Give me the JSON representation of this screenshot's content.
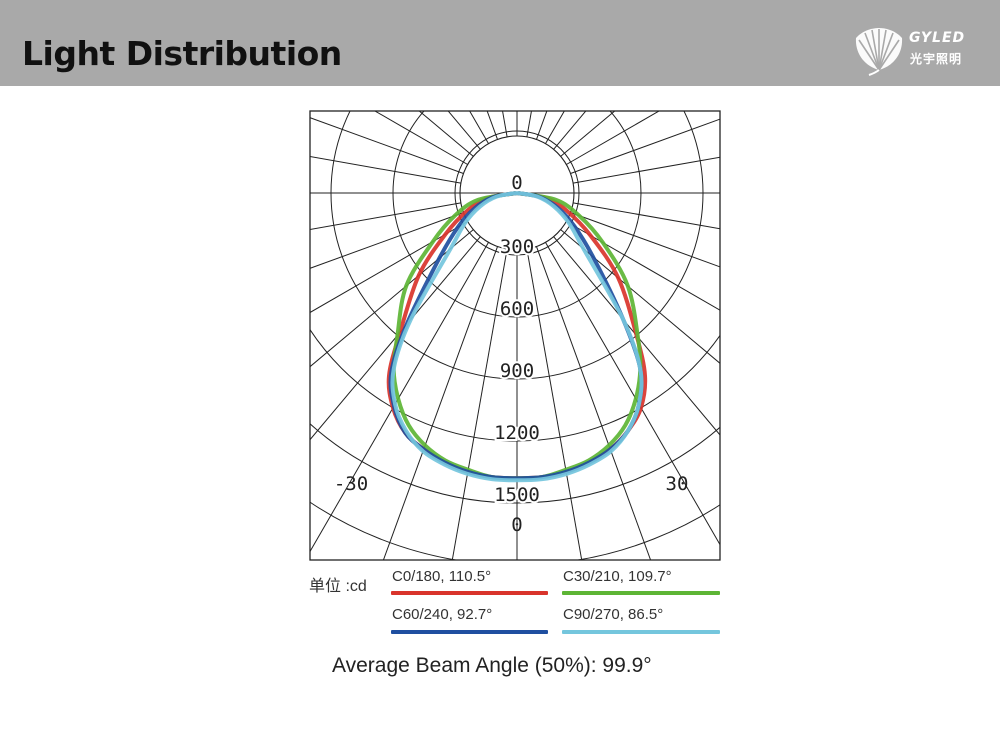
{
  "header": {
    "title": "Light Distribution",
    "logo": {
      "name_en": "GYLED",
      "name_cn": "光宇照明"
    }
  },
  "chart_data": {
    "type": "polar",
    "unit_label": "单位 :cd",
    "radial_ticks": [
      "0",
      "300",
      "600",
      "900",
      "1200",
      "1500"
    ],
    "radial_values": [
      0,
      300,
      600,
      900,
      1200,
      1500
    ],
    "angle_labels": {
      "left": "-30",
      "right": "30",
      "bottom": "0"
    },
    "angle_step_deg": 10,
    "series": [
      {
        "name": "C0/180, 110.5°",
        "color": "#d9342b",
        "beam_angle": 110.5,
        "angles": [
          -90,
          -80,
          -70,
          -60,
          -50,
          -40,
          -35,
          -30,
          -25,
          -20,
          -15,
          -10,
          -5,
          0,
          5,
          10,
          15,
          20,
          25,
          30,
          35,
          40,
          50,
          60,
          70,
          80,
          90
        ],
        "values": [
          0,
          150,
          260,
          400,
          620,
          880,
          1080,
          1200,
          1280,
          1320,
          1350,
          1370,
          1380,
          1380,
          1380,
          1370,
          1350,
          1320,
          1270,
          1200,
          1080,
          900,
          640,
          410,
          260,
          150,
          0
        ]
      },
      {
        "name": "C30/210, 109.7°",
        "color": "#5db535",
        "beam_angle": 109.7,
        "angles": [
          -90,
          -80,
          -70,
          -60,
          -50,
          -40,
          -35,
          -30,
          -25,
          -20,
          -15,
          -10,
          -5,
          0,
          5,
          10,
          15,
          20,
          25,
          30,
          35,
          40,
          50,
          60,
          70,
          80,
          90
        ],
        "values": [
          0,
          190,
          320,
          470,
          700,
          900,
          1040,
          1150,
          1240,
          1300,
          1340,
          1360,
          1380,
          1380,
          1380,
          1360,
          1340,
          1300,
          1240,
          1150,
          1040,
          910,
          700,
          480,
          320,
          190,
          0
        ]
      },
      {
        "name": "C60/240, 92.7°",
        "color": "#1f4fa0",
        "beam_angle": 92.7,
        "angles": [
          -90,
          -80,
          -70,
          -60,
          -50,
          -40,
          -35,
          -30,
          -25,
          -20,
          -15,
          -10,
          -5,
          0,
          5,
          10,
          15,
          20,
          25,
          30,
          35,
          40,
          50,
          60,
          70,
          80,
          90
        ],
        "values": [
          0,
          120,
          220,
          330,
          490,
          830,
          1060,
          1190,
          1280,
          1320,
          1350,
          1370,
          1380,
          1380,
          1380,
          1370,
          1350,
          1320,
          1270,
          1180,
          1040,
          800,
          480,
          320,
          210,
          110,
          0
        ]
      },
      {
        "name": "C90/270, 86.5°",
        "color": "#74c6dd",
        "beam_angle": 86.5,
        "angles": [
          -90,
          -80,
          -70,
          -60,
          -50,
          -40,
          -35,
          -30,
          -25,
          -20,
          -15,
          -10,
          -5,
          0,
          5,
          10,
          15,
          20,
          25,
          30,
          35,
          40,
          50,
          60,
          70,
          80,
          90
        ],
        "values": [
          0,
          100,
          190,
          290,
          420,
          800,
          1040,
          1180,
          1270,
          1330,
          1360,
          1380,
          1390,
          1390,
          1390,
          1380,
          1360,
          1330,
          1270,
          1180,
          1040,
          800,
          420,
          290,
          190,
          100,
          0
        ]
      }
    ],
    "average_label": "Average Beam Angle (50%): 99.9°",
    "average_beam_angle": 99.9
  }
}
